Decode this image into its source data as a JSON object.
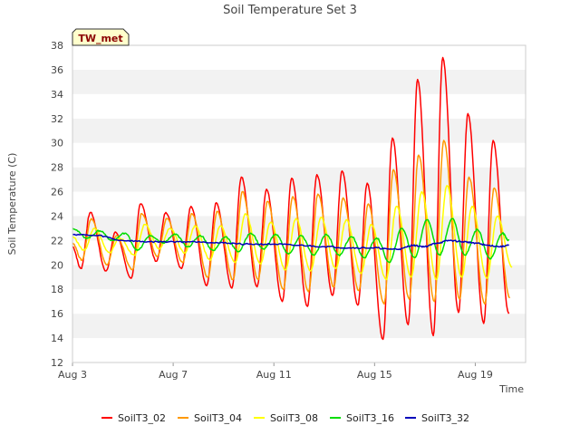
{
  "chart_data": {
    "type": "line",
    "title": "Soil Temperature Set 3",
    "xlabel": "Time",
    "ylabel": "Soil Temperature (C)",
    "ylim": [
      12,
      38
    ],
    "yticks": [
      12,
      14,
      16,
      18,
      20,
      22,
      24,
      26,
      28,
      30,
      32,
      34,
      36,
      38
    ],
    "xlim": [
      "2024-08-03",
      "2024-08-21"
    ],
    "xticks": [
      {
        "date": "2024-08-03",
        "label": "Aug 3"
      },
      {
        "date": "2024-08-07",
        "label": "Aug 7"
      },
      {
        "date": "2024-08-11",
        "label": "Aug 11"
      },
      {
        "date": "2024-08-15",
        "label": "Aug 15"
      },
      {
        "date": "2024-08-19",
        "label": "Aug 19"
      }
    ],
    "grid": "horizontal alternating bands",
    "legend": "bottom",
    "annotation": "TW_met",
    "series": [
      {
        "name": "SoilT3_02",
        "color": "#ff0000",
        "points": [
          [
            "2024-08-03 00:00",
            21.5
          ],
          [
            "2024-08-03 08:00",
            19.7
          ],
          [
            "2024-08-03 17:00",
            24.3
          ],
          [
            "2024-08-04 08:00",
            19.5
          ],
          [
            "2024-08-04 17:00",
            22.7
          ],
          [
            "2024-08-05 08:00",
            18.9
          ],
          [
            "2024-08-05 17:00",
            25.0
          ],
          [
            "2024-08-06 08:00",
            20.3
          ],
          [
            "2024-08-06 17:00",
            24.3
          ],
          [
            "2024-08-07 08:00",
            19.7
          ],
          [
            "2024-08-07 17:00",
            24.8
          ],
          [
            "2024-08-08 08:00",
            18.3
          ],
          [
            "2024-08-08 17:00",
            25.1
          ],
          [
            "2024-08-09 08:00",
            18.1
          ],
          [
            "2024-08-09 17:00",
            27.2
          ],
          [
            "2024-08-10 08:00",
            18.2
          ],
          [
            "2024-08-10 17:00",
            26.2
          ],
          [
            "2024-08-11 08:00",
            17.0
          ],
          [
            "2024-08-11 17:00",
            27.1
          ],
          [
            "2024-08-12 08:00",
            16.6
          ],
          [
            "2024-08-12 17:00",
            27.4
          ],
          [
            "2024-08-13 08:00",
            17.5
          ],
          [
            "2024-08-13 17:00",
            27.7
          ],
          [
            "2024-08-14 08:00",
            16.7
          ],
          [
            "2024-08-14 17:00",
            26.7
          ],
          [
            "2024-08-15 08:00",
            13.9
          ],
          [
            "2024-08-15 17:00",
            30.4
          ],
          [
            "2024-08-16 08:00",
            15.1
          ],
          [
            "2024-08-16 17:00",
            35.2
          ],
          [
            "2024-08-17 08:00",
            14.2
          ],
          [
            "2024-08-17 17:00",
            37.0
          ],
          [
            "2024-08-18 08:00",
            16.1
          ],
          [
            "2024-08-18 17:00",
            32.4
          ],
          [
            "2024-08-19 08:00",
            15.2
          ],
          [
            "2024-08-19 17:00",
            30.2
          ],
          [
            "2024-08-20 08:00",
            16.0
          ]
        ]
      },
      {
        "name": "SoilT3_04",
        "color": "#ff9900",
        "points": [
          [
            "2024-08-03 00:00",
            21.8
          ],
          [
            "2024-08-03 09:00",
            20.4
          ],
          [
            "2024-08-03 18:00",
            23.8
          ],
          [
            "2024-08-04 09:00",
            20.0
          ],
          [
            "2024-08-04 18:00",
            22.4
          ],
          [
            "2024-08-05 09:00",
            19.6
          ],
          [
            "2024-08-05 18:00",
            24.2
          ],
          [
            "2024-08-06 09:00",
            20.7
          ],
          [
            "2024-08-06 18:00",
            23.8
          ],
          [
            "2024-08-07 09:00",
            20.2
          ],
          [
            "2024-08-07 18:00",
            24.2
          ],
          [
            "2024-08-08 09:00",
            19.0
          ],
          [
            "2024-08-08 18:00",
            24.4
          ],
          [
            "2024-08-09 09:00",
            18.8
          ],
          [
            "2024-08-09 18:00",
            26.0
          ],
          [
            "2024-08-10 09:00",
            18.8
          ],
          [
            "2024-08-10 18:00",
            25.2
          ],
          [
            "2024-08-11 09:00",
            18.0
          ],
          [
            "2024-08-11 18:00",
            25.6
          ],
          [
            "2024-08-12 09:00",
            17.8
          ],
          [
            "2024-08-12 18:00",
            25.8
          ],
          [
            "2024-08-13 09:00",
            18.2
          ],
          [
            "2024-08-13 18:00",
            25.5
          ],
          [
            "2024-08-14 09:00",
            17.9
          ],
          [
            "2024-08-14 18:00",
            25.0
          ],
          [
            "2024-08-15 09:00",
            16.8
          ],
          [
            "2024-08-15 18:00",
            27.8
          ],
          [
            "2024-08-16 09:00",
            17.2
          ],
          [
            "2024-08-16 18:00",
            29.0
          ],
          [
            "2024-08-17 09:00",
            17.0
          ],
          [
            "2024-08-17 18:00",
            30.2
          ],
          [
            "2024-08-18 09:00",
            17.2
          ],
          [
            "2024-08-18 18:00",
            27.2
          ],
          [
            "2024-08-19 09:00",
            16.8
          ],
          [
            "2024-08-19 18:00",
            26.3
          ],
          [
            "2024-08-20 09:00",
            17.3
          ]
        ]
      },
      {
        "name": "SoilT3_08",
        "color": "#ffff00",
        "points": [
          [
            "2024-08-03 00:00",
            22.3
          ],
          [
            "2024-08-03 11:00",
            21.2
          ],
          [
            "2024-08-03 21:00",
            23.0
          ],
          [
            "2024-08-04 11:00",
            21.0
          ],
          [
            "2024-08-04 21:00",
            22.2
          ],
          [
            "2024-08-05 11:00",
            20.8
          ],
          [
            "2024-08-05 21:00",
            23.3
          ],
          [
            "2024-08-06 11:00",
            21.3
          ],
          [
            "2024-08-06 21:00",
            23.0
          ],
          [
            "2024-08-07 11:00",
            21.0
          ],
          [
            "2024-08-07 21:00",
            23.2
          ],
          [
            "2024-08-08 11:00",
            20.4
          ],
          [
            "2024-08-08 21:00",
            23.2
          ],
          [
            "2024-08-09 11:00",
            20.2
          ],
          [
            "2024-08-09 21:00",
            24.2
          ],
          [
            "2024-08-10 11:00",
            20.1
          ],
          [
            "2024-08-10 21:00",
            23.5
          ],
          [
            "2024-08-11 11:00",
            19.6
          ],
          [
            "2024-08-11 21:00",
            23.8
          ],
          [
            "2024-08-12 11:00",
            19.5
          ],
          [
            "2024-08-12 21:00",
            23.9
          ],
          [
            "2024-08-13 11:00",
            19.7
          ],
          [
            "2024-08-13 21:00",
            23.7
          ],
          [
            "2024-08-14 11:00",
            19.3
          ],
          [
            "2024-08-14 21:00",
            23.3
          ],
          [
            "2024-08-15 11:00",
            18.8
          ],
          [
            "2024-08-15 21:00",
            24.8
          ],
          [
            "2024-08-16 11:00",
            19.0
          ],
          [
            "2024-08-16 21:00",
            26.0
          ],
          [
            "2024-08-17 11:00",
            18.8
          ],
          [
            "2024-08-17 21:00",
            26.5
          ],
          [
            "2024-08-18 11:00",
            19.0
          ],
          [
            "2024-08-18 21:00",
            24.8
          ],
          [
            "2024-08-19 11:00",
            18.9
          ],
          [
            "2024-08-19 21:00",
            24.0
          ],
          [
            "2024-08-20 11:00",
            19.8
          ]
        ]
      },
      {
        "name": "SoilT3_16",
        "color": "#00dd00",
        "points": [
          [
            "2024-08-03 00:00",
            23.0
          ],
          [
            "2024-08-03 14:00",
            22.2
          ],
          [
            "2024-08-04 02:00",
            22.8
          ],
          [
            "2024-08-04 14:00",
            22.0
          ],
          [
            "2024-08-05 02:00",
            22.6
          ],
          [
            "2024-08-05 14:00",
            21.2
          ],
          [
            "2024-08-06 02:00",
            22.4
          ],
          [
            "2024-08-06 14:00",
            21.8
          ],
          [
            "2024-08-07 02:00",
            22.5
          ],
          [
            "2024-08-07 14:00",
            21.5
          ],
          [
            "2024-08-08 02:00",
            22.4
          ],
          [
            "2024-08-08 14:00",
            21.2
          ],
          [
            "2024-08-09 02:00",
            22.3
          ],
          [
            "2024-08-09 14:00",
            21.1
          ],
          [
            "2024-08-10 02:00",
            22.6
          ],
          [
            "2024-08-10 14:00",
            21.3
          ],
          [
            "2024-08-11 02:00",
            22.5
          ],
          [
            "2024-08-11 14:00",
            20.9
          ],
          [
            "2024-08-12 02:00",
            22.4
          ],
          [
            "2024-08-12 14:00",
            20.8
          ],
          [
            "2024-08-13 02:00",
            22.5
          ],
          [
            "2024-08-13 14:00",
            20.8
          ],
          [
            "2024-08-14 02:00",
            22.3
          ],
          [
            "2024-08-14 14:00",
            20.6
          ],
          [
            "2024-08-15 02:00",
            22.2
          ],
          [
            "2024-08-15 14:00",
            20.2
          ],
          [
            "2024-08-16 02:00",
            23.0
          ],
          [
            "2024-08-16 14:00",
            20.6
          ],
          [
            "2024-08-17 02:00",
            23.7
          ],
          [
            "2024-08-17 14:00",
            20.8
          ],
          [
            "2024-08-18 02:00",
            23.8
          ],
          [
            "2024-08-18 14:00",
            20.8
          ],
          [
            "2024-08-19 02:00",
            22.9
          ],
          [
            "2024-08-19 14:00",
            20.5
          ],
          [
            "2024-08-20 02:00",
            22.6
          ],
          [
            "2024-08-20 08:00",
            22.0
          ]
        ]
      },
      {
        "name": "SoilT3_32",
        "color": "#0000bb",
        "points": [
          [
            "2024-08-03 00:00",
            22.5
          ],
          [
            "2024-08-04 00:00",
            22.4
          ],
          [
            "2024-08-05 00:00",
            22.0
          ],
          [
            "2024-08-06 00:00",
            21.9
          ],
          [
            "2024-08-07 00:00",
            21.9
          ],
          [
            "2024-08-08 00:00",
            21.9
          ],
          [
            "2024-08-09 00:00",
            21.8
          ],
          [
            "2024-08-10 00:00",
            21.7
          ],
          [
            "2024-08-11 00:00",
            21.7
          ],
          [
            "2024-08-12 00:00",
            21.6
          ],
          [
            "2024-08-13 00:00",
            21.5
          ],
          [
            "2024-08-14 00:00",
            21.4
          ],
          [
            "2024-08-15 00:00",
            21.4
          ],
          [
            "2024-08-15 12:00",
            21.3
          ],
          [
            "2024-08-16 00:00",
            21.3
          ],
          [
            "2024-08-16 12:00",
            21.6
          ],
          [
            "2024-08-17 00:00",
            21.5
          ],
          [
            "2024-08-17 12:00",
            21.8
          ],
          [
            "2024-08-18 00:00",
            22.0
          ],
          [
            "2024-08-18 12:00",
            21.9
          ],
          [
            "2024-08-19 00:00",
            21.8
          ],
          [
            "2024-08-19 12:00",
            21.6
          ],
          [
            "2024-08-20 00:00",
            21.5
          ],
          [
            "2024-08-20 08:00",
            21.6
          ]
        ]
      }
    ]
  }
}
